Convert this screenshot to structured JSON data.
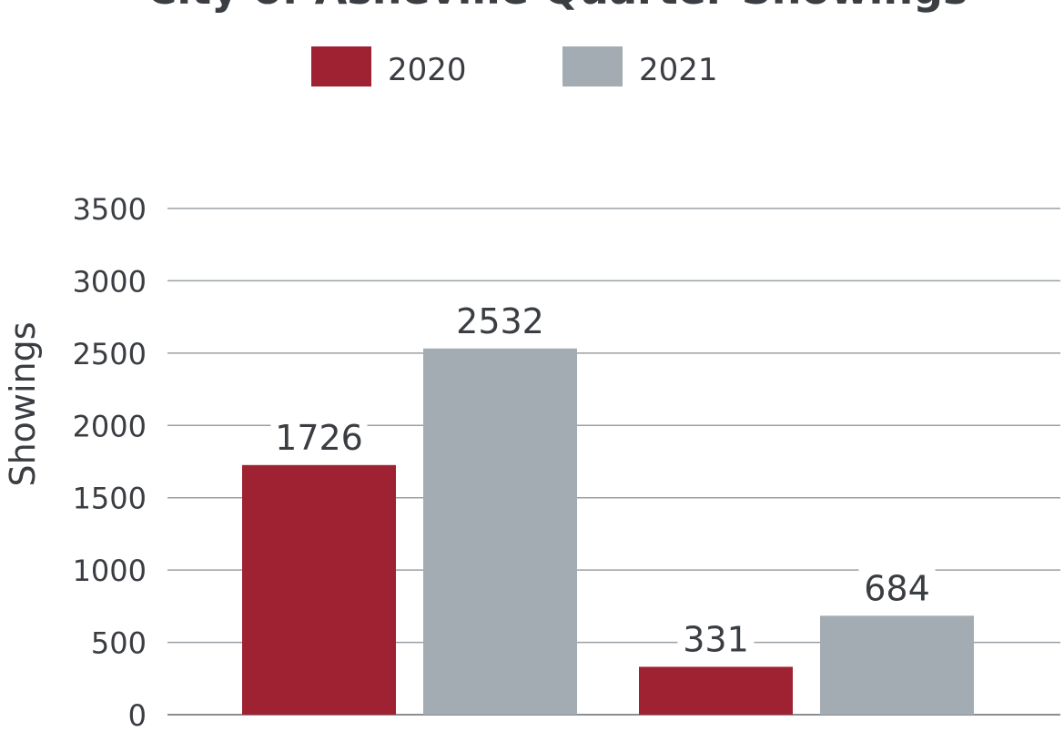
{
  "chart_data": {
    "type": "bar",
    "title": "City of Asheville Quarter Showings",
    "ylabel": "Showings",
    "xlabel": "",
    "ylim": [
      0,
      3500
    ],
    "yticks": [
      0,
      500,
      1000,
      1500,
      2000,
      2500,
      3000,
      3500
    ],
    "grid": true,
    "legend_placement": "top-center",
    "categories": [
      "",
      ""
    ],
    "series": [
      {
        "name": "2020",
        "color": "#9e2232",
        "values": [
          1726,
          331
        ],
        "labels": [
          "1726",
          "331"
        ]
      },
      {
        "name": "2021",
        "color": "#a3acb2",
        "values": [
          2532,
          684
        ],
        "labels": [
          "2532",
          "684"
        ]
      }
    ]
  }
}
